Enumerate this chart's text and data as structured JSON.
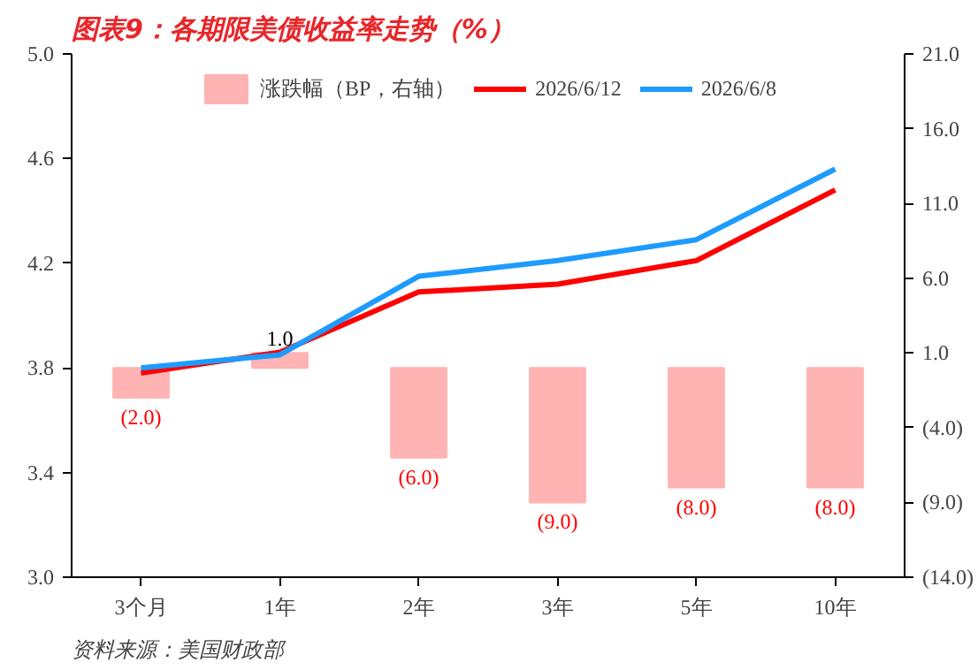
{
  "chart_data": {
    "type": "line",
    "title": "图表9：各期限美债收益率走势（%）",
    "annotations": [
      "资料来源：美国财政部"
    ],
    "categories": [
      "3个月",
      "1年",
      "2年",
      "3年",
      "5年",
      "10年"
    ],
    "series": [
      {
        "name": "涨跌幅（BP，右轴）",
        "type": "bar",
        "axis": "y2",
        "color": "#ffb3b3",
        "values": [
          -2.0,
          1.0,
          -6.0,
          -9.0,
          -8.0,
          -8.0
        ],
        "value_labels": [
          "(2.0)",
          "1.0",
          "(6.0)",
          "(9.0)",
          "(8.0)",
          "(8.0)"
        ]
      },
      {
        "name": "2026/6/12",
        "color": "#ff0000",
        "values": [
          3.78,
          3.86,
          4.09,
          4.12,
          4.21,
          4.48
        ]
      },
      {
        "name": "2026/6/8",
        "color": "#1e9bff",
        "values": [
          3.8,
          3.85,
          4.15,
          4.21,
          4.29,
          4.56
        ]
      }
    ],
    "ylim": [
      3.0,
      5.0
    ],
    "yticks": [
      {
        "value": 3.0,
        "label": "3.0"
      },
      {
        "value": 3.4,
        "label": "3.4"
      },
      {
        "value": 3.8,
        "label": "3.8"
      },
      {
        "value": 4.2,
        "label": "4.2"
      },
      {
        "value": 4.6,
        "label": "4.6"
      },
      {
        "value": 5.0,
        "label": "5.0"
      }
    ],
    "y2lim": [
      -14,
      21
    ],
    "y2ticks": [
      {
        "value": 21,
        "label": "21.0"
      },
      {
        "value": 16,
        "label": "16.0"
      },
      {
        "value": 11,
        "label": "11.0"
      },
      {
        "value": 6,
        "label": "6.0"
      },
      {
        "value": 1,
        "label": "1.0"
      },
      {
        "value": -4,
        "label": "(4.0)"
      },
      {
        "value": -9,
        "label": "(9.0)"
      },
      {
        "value": -14,
        "label": "(14.0)"
      }
    ],
    "legend": "top",
    "grid": false
  }
}
